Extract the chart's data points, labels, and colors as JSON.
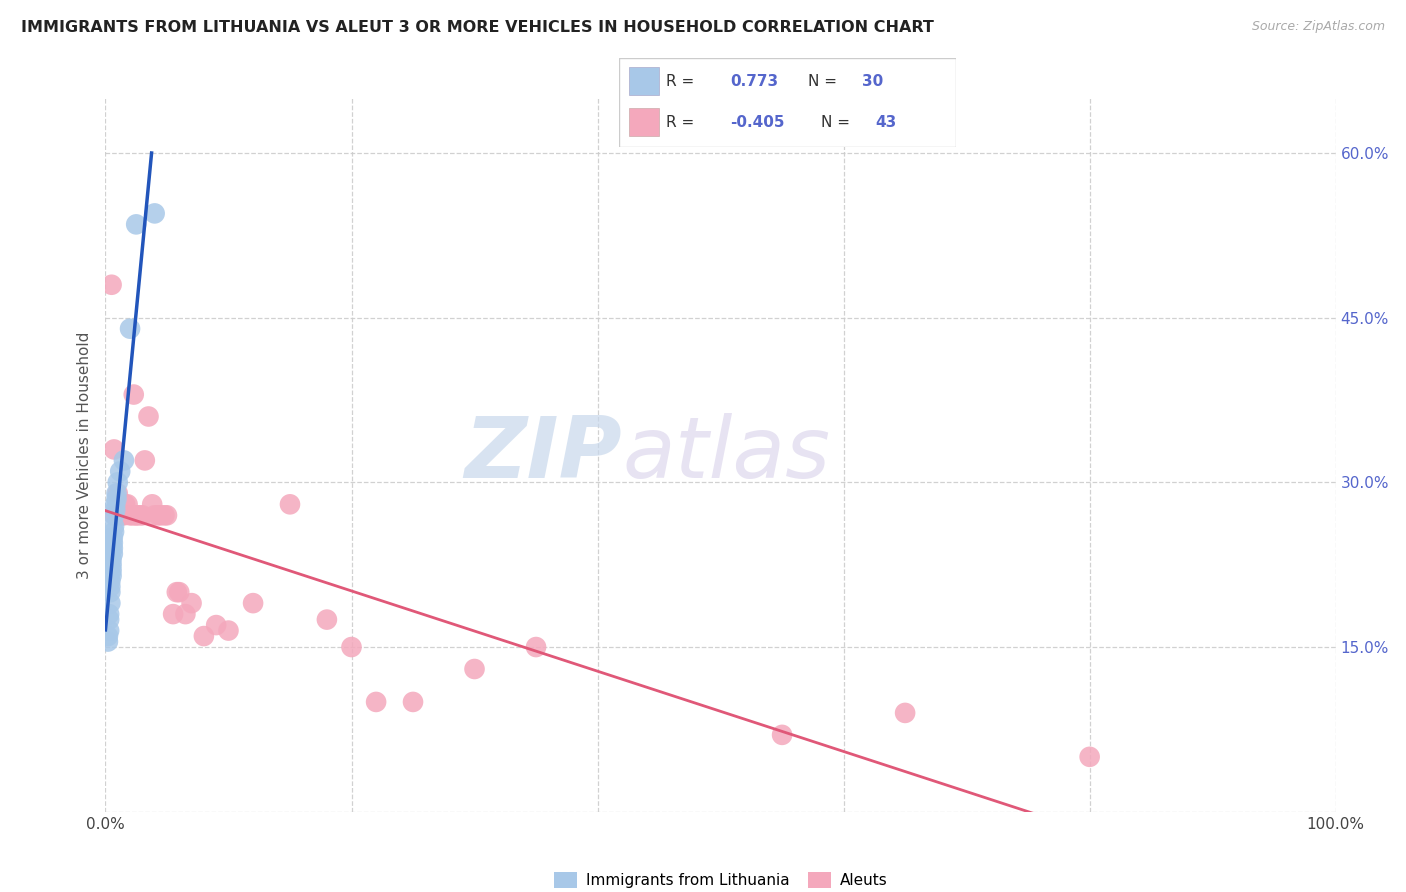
{
  "title": "IMMIGRANTS FROM LITHUANIA VS ALEUT 3 OR MORE VEHICLES IN HOUSEHOLD CORRELATION CHART",
  "source": "Source: ZipAtlas.com",
  "ylabel": "3 or more Vehicles in Household",
  "r_lithuania": 0.773,
  "n_lithuania": 30,
  "r_aleut": -0.405,
  "n_aleut": 43,
  "xlim": [
    0.0,
    1.0
  ],
  "ylim": [
    0.0,
    0.65
  ],
  "xtick_positions": [
    0.0,
    0.2,
    0.4,
    0.6,
    0.8,
    1.0
  ],
  "xtick_labels": [
    "0.0%",
    "",
    "",
    "",
    "",
    "100.0%"
  ],
  "ytick_positions": [
    0.0,
    0.15,
    0.3,
    0.45,
    0.6
  ],
  "ytick_labels": [
    "",
    "15.0%",
    "30.0%",
    "45.0%",
    "60.0%"
  ],
  "color_lithuania": "#a8c8e8",
  "color_aleut": "#f4a8bc",
  "line_color_lithuania": "#2255bb",
  "line_color_aleut": "#e05878",
  "watermark_zip": "ZIP",
  "watermark_atlas": "atlas",
  "legend_items": [
    "Immigrants from Lithuania",
    "Aleuts"
  ],
  "lithuania_x": [
    0.002,
    0.002,
    0.003,
    0.003,
    0.003,
    0.004,
    0.004,
    0.004,
    0.004,
    0.005,
    0.005,
    0.005,
    0.005,
    0.006,
    0.006,
    0.006,
    0.006,
    0.007,
    0.007,
    0.007,
    0.008,
    0.008,
    0.009,
    0.009,
    0.01,
    0.012,
    0.015,
    0.02,
    0.025,
    0.04
  ],
  "lithuania_y": [
    0.155,
    0.16,
    0.165,
    0.175,
    0.18,
    0.19,
    0.2,
    0.205,
    0.21,
    0.215,
    0.22,
    0.225,
    0.23,
    0.235,
    0.24,
    0.245,
    0.25,
    0.255,
    0.26,
    0.27,
    0.275,
    0.28,
    0.285,
    0.29,
    0.3,
    0.31,
    0.32,
    0.44,
    0.535,
    0.545
  ],
  "aleut_x": [
    0.005,
    0.007,
    0.008,
    0.01,
    0.012,
    0.013,
    0.015,
    0.016,
    0.018,
    0.02,
    0.022,
    0.023,
    0.025,
    0.025,
    0.028,
    0.03,
    0.032,
    0.035,
    0.038,
    0.04,
    0.043,
    0.045,
    0.048,
    0.05,
    0.055,
    0.058,
    0.06,
    0.065,
    0.07,
    0.08,
    0.09,
    0.1,
    0.12,
    0.15,
    0.18,
    0.2,
    0.22,
    0.25,
    0.3,
    0.35,
    0.55,
    0.65,
    0.8
  ],
  "aleut_y": [
    0.48,
    0.33,
    0.27,
    0.29,
    0.27,
    0.27,
    0.27,
    0.28,
    0.28,
    0.27,
    0.27,
    0.38,
    0.27,
    0.27,
    0.27,
    0.27,
    0.32,
    0.36,
    0.28,
    0.27,
    0.27,
    0.27,
    0.27,
    0.27,
    0.18,
    0.2,
    0.2,
    0.18,
    0.19,
    0.16,
    0.17,
    0.165,
    0.19,
    0.28,
    0.175,
    0.15,
    0.1,
    0.1,
    0.13,
    0.15,
    0.07,
    0.09,
    0.05
  ],
  "background_color": "#ffffff",
  "grid_color": "#cccccc"
}
